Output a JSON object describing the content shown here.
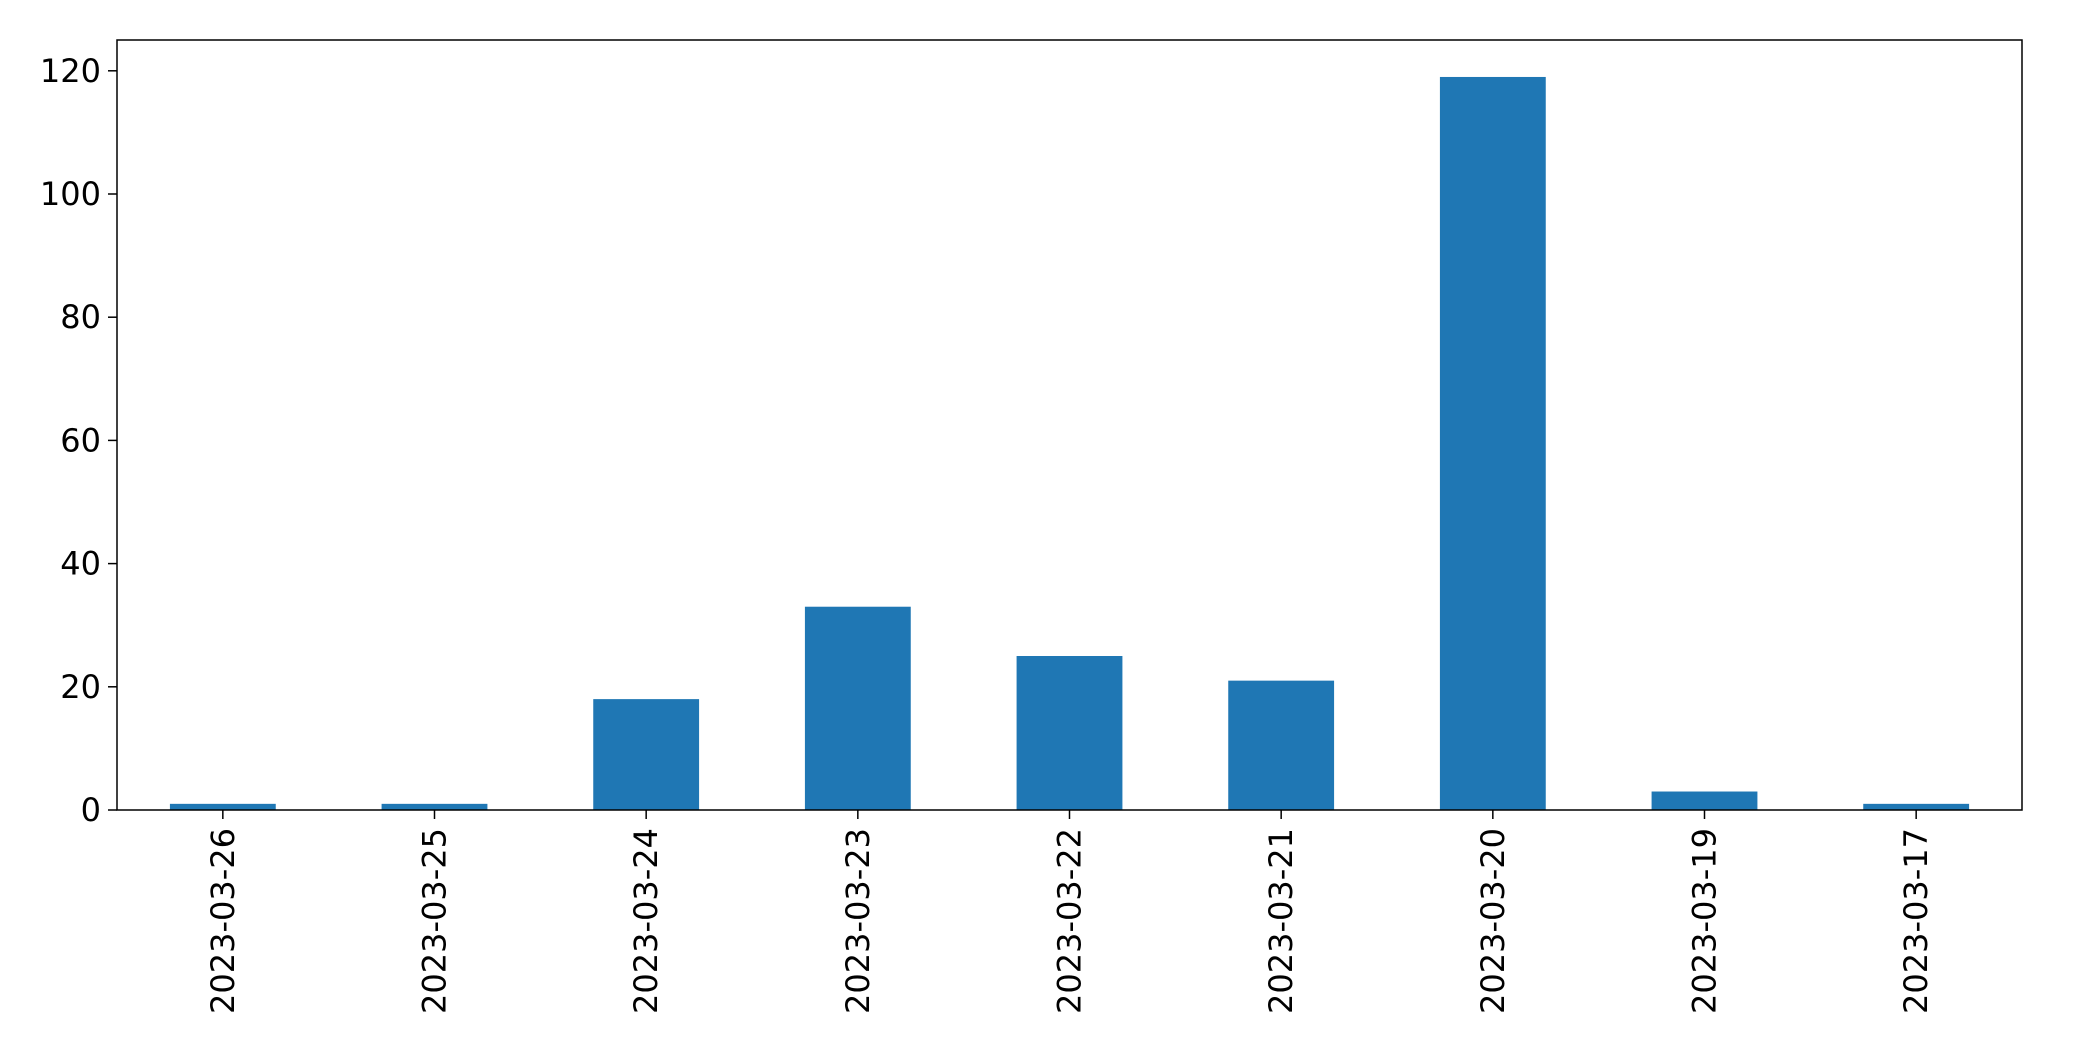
{
  "chart_data": {
    "type": "bar",
    "categories": [
      "2023-03-26",
      "2023-03-25",
      "2023-03-24",
      "2023-03-23",
      "2023-03-22",
      "2023-03-21",
      "2023-03-20",
      "2023-03-19",
      "2023-03-17"
    ],
    "values": [
      1,
      1,
      18,
      33,
      25,
      21,
      119,
      3,
      1
    ],
    "title": "",
    "xlabel": "",
    "ylabel": "",
    "ylim": [
      0,
      125
    ],
    "yticks": [
      0,
      20,
      40,
      60,
      80,
      100,
      120
    ],
    "grid": false,
    "legend": "none",
    "bar_color": "#1f77b4"
  }
}
